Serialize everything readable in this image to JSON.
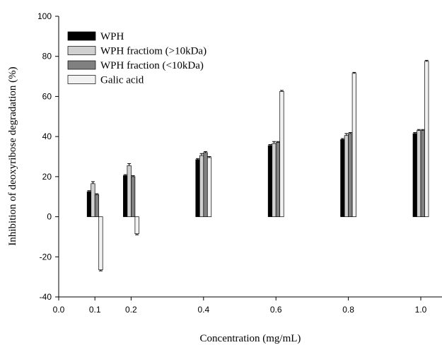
{
  "chart_data": {
    "type": "bar",
    "xlabel": "Concentration (mg/mL)",
    "ylabel": "Inhibition of deoxyribose degradation (%)",
    "x_tick_labels": [
      "0.0",
      "0.1",
      "0.2",
      "0.4",
      "0.6",
      "0.8",
      "1.0"
    ],
    "y_ticks": [
      -40,
      -20,
      0,
      20,
      40,
      60,
      80,
      100
    ],
    "ylim": [
      -40,
      100
    ],
    "grid": false,
    "legend_position": "top-left",
    "categories": [
      "0.1",
      "0.2",
      "0.4",
      "0.6",
      "0.8",
      "1.0"
    ],
    "series": [
      {
        "name": "WPH",
        "color": "#000000",
        "values": [
          12.5,
          20.5,
          28.5,
          35.5,
          38.5,
          41.5
        ],
        "errors": [
          0.5,
          0.5,
          0.5,
          0.5,
          0.5,
          0.5
        ]
      },
      {
        "name": "WPH fractiom (>10kDa)",
        "color": "#d0d0d0",
        "values": [
          16.5,
          25.5,
          30.5,
          36.5,
          40.5,
          43
        ],
        "errors": [
          1,
          1,
          1,
          1,
          1,
          0.5
        ]
      },
      {
        "name": "WPH fraction (<10kDa)",
        "color": "#808080",
        "values": [
          11,
          20,
          32,
          37,
          41.5,
          43
        ],
        "errors": [
          0.5,
          0.5,
          0.5,
          0.5,
          0.5,
          0.5
        ]
      },
      {
        "name": "Galic acid",
        "color": "#f2f2f2",
        "values": [
          -26.5,
          -8.5,
          29.5,
          62.5,
          71.5,
          77.5
        ],
        "errors": [
          0.5,
          0.5,
          0.5,
          0.5,
          0.5,
          0.5
        ]
      }
    ]
  }
}
